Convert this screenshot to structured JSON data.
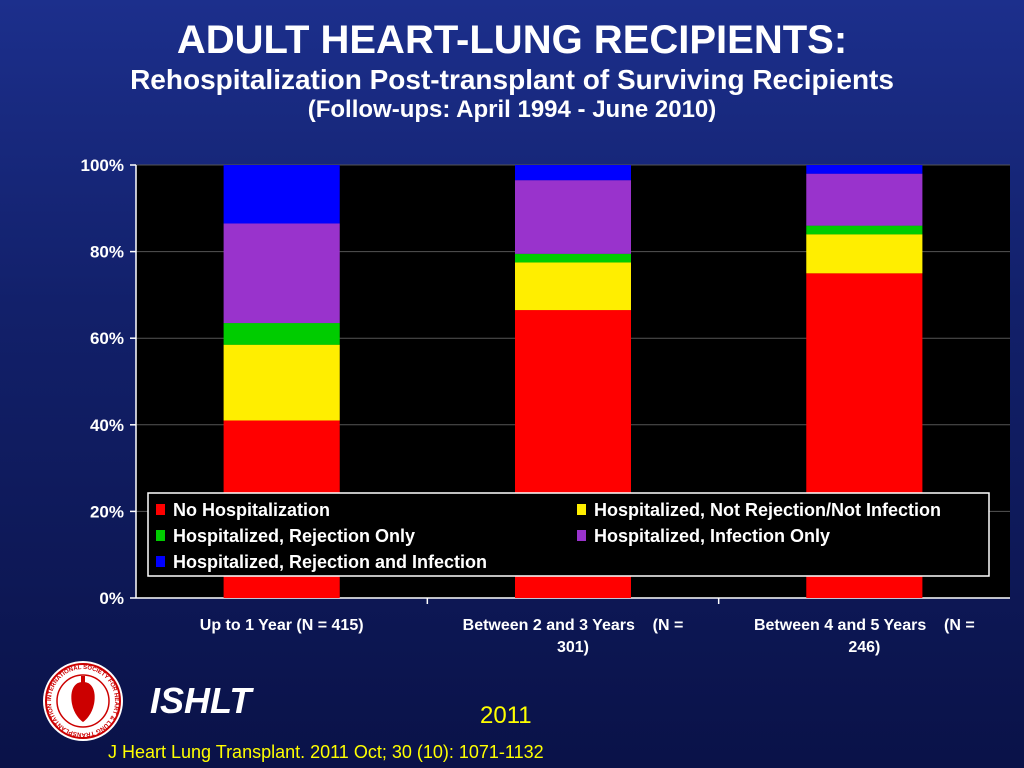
{
  "header": {
    "title": "ADULT HEART-LUNG RECIPIENTS:",
    "subtitle": "Rehospitalization Post-transplant of Surviving Recipients",
    "subtitle2": "(Follow-ups: April 1994 - June 2010)"
  },
  "footer": {
    "org": "ISHLT",
    "logo_text": "INTERNATIONAL SOCIETY FOR HEART & LUNG TRANSPLANTATION",
    "year": "2011",
    "citation": "J Heart Lung Transplant. 2011 Oct; 30 (10): 1071-1132"
  },
  "chart_data": {
    "type": "bar",
    "stacked": true,
    "percent": true,
    "categories": [
      [
        "Up to 1 Year (N = 415)"
      ],
      [
        "Between 2 and 3 Years    (N =",
        "301)"
      ],
      [
        "Between 4 and 5 Years    (N =",
        "246)"
      ]
    ],
    "ylim": [
      0,
      100
    ],
    "yticks": [
      "0%",
      "20%",
      "40%",
      "60%",
      "80%",
      "100%"
    ],
    "grid": true,
    "legend_position": "bottom-inside",
    "series": [
      {
        "name": "No Hospitalization",
        "color": "#ff0000",
        "values": [
          41,
          66.5,
          75
        ]
      },
      {
        "name": "Hospitalized, Not Rejection/Not Infection",
        "color": "#ffee00",
        "values": [
          17.5,
          11,
          9
        ]
      },
      {
        "name": "Hospitalized, Rejection Only",
        "color": "#00cc00",
        "values": [
          5,
          2,
          2
        ]
      },
      {
        "name": "Hospitalized, Infection Only",
        "color": "#9933cc",
        "values": [
          23,
          17,
          12
        ]
      },
      {
        "name": "Hospitalized, Rejection and Infection",
        "color": "#0000ff",
        "values": [
          13.5,
          3.5,
          2
        ]
      }
    ]
  }
}
